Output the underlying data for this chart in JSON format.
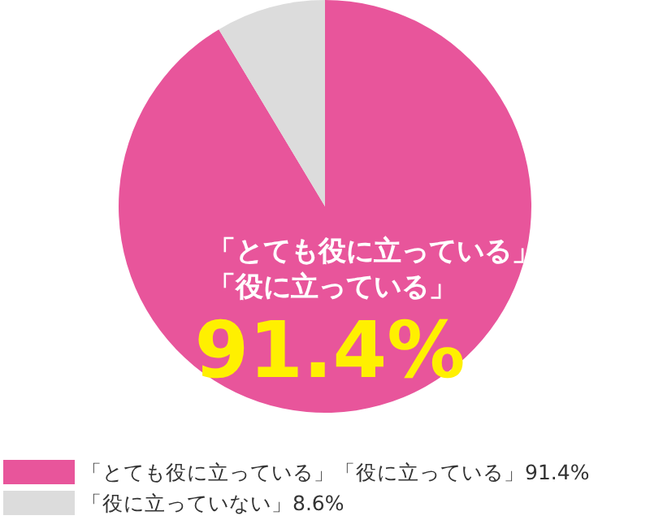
{
  "chart_data": {
    "type": "pie",
    "categories": [
      "「とても役に立っている」「役に立っている」",
      "「役に立っていない」"
    ],
    "values": [
      91.4,
      8.6
    ],
    "colors": [
      "#e8559b",
      "#dcdcdc"
    ],
    "value_labels": [
      "91.4%",
      "8.6%"
    ],
    "annotations": [
      "「とても役に立っている」",
      "「役に立っている」"
    ],
    "legend": "bottom"
  }
}
